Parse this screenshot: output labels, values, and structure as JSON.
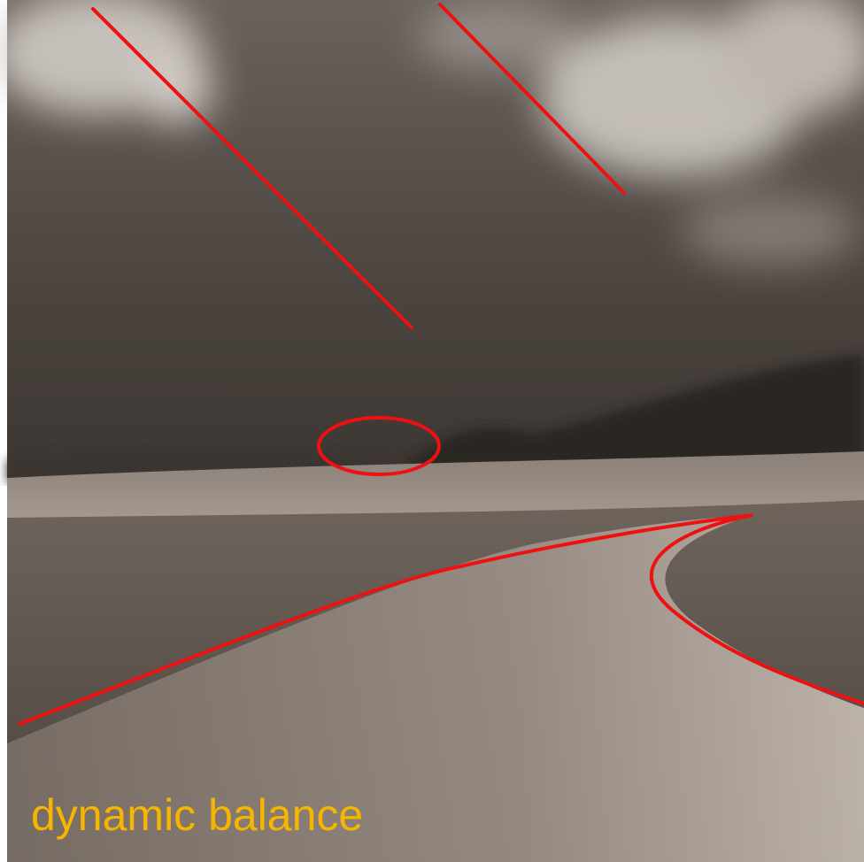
{
  "caption": "dynamic balance"
}
